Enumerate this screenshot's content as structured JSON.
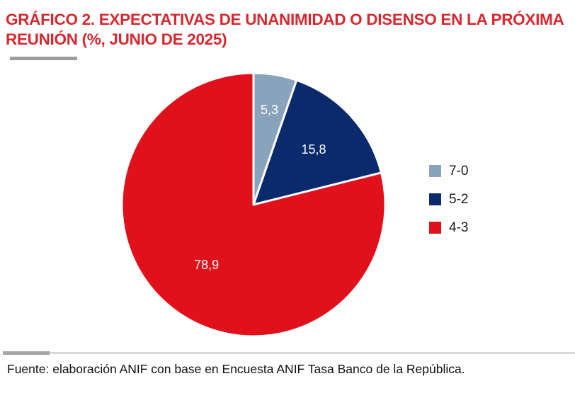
{
  "title": "GRÁFICO 2. EXPECTATIVAS DE UNANIMIDAD O DISENSO EN LA PRÓXIMA REUNIÓN (%, JUNIO DE 2025)",
  "source": "Fuente: elaboración ANIF con base en Encuesta ANIF Tasa Banco de la República.",
  "colors": {
    "title": "#d7282f",
    "accent_bar": "#9c9c9c",
    "divider_light": "#d9d9d9",
    "divider_dark": "#a6a6a6"
  },
  "chart_data": {
    "type": "pie",
    "title": "GRÁFICO 2. EXPECTATIVAS DE UNANIMIDAD O DISENSO EN LA PRÓXIMA REUNIÓN (%, JUNIO DE 2025)",
    "unit": "%",
    "start": "12 o'clock, clockwise",
    "legend_position": "right",
    "slices": [
      {
        "label": "7-0",
        "value": 5.3,
        "display": "5,3",
        "color": "#8aa3bd"
      },
      {
        "label": "5-2",
        "value": 15.8,
        "display": "15,8",
        "color": "#0b2a6b"
      },
      {
        "label": "4-3",
        "value": 78.9,
        "display": "78,9",
        "color": "#e0111b"
      }
    ]
  }
}
